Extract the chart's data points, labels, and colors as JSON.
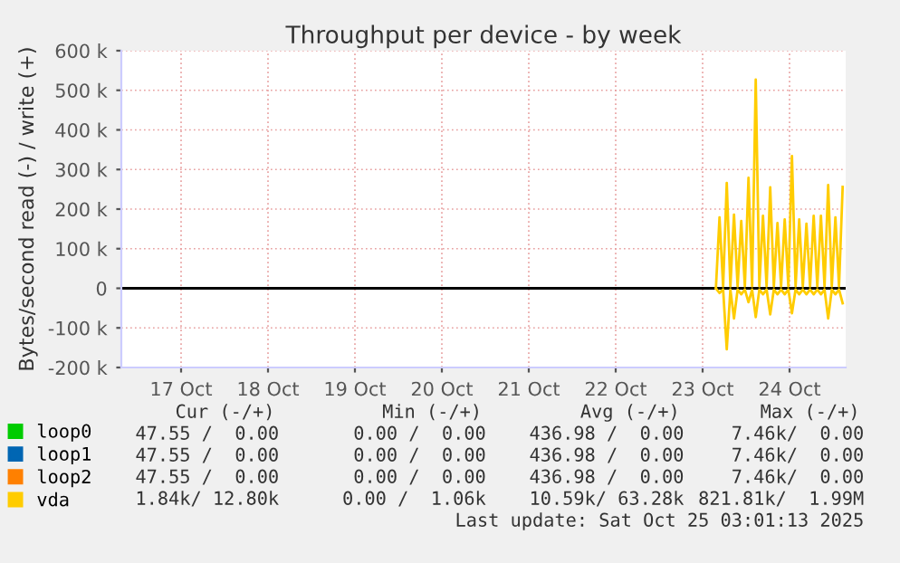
{
  "chart_data": {
    "type": "line",
    "title": "Throughput per device - by week",
    "ylabel": "Bytes/second read (-) / write (+)",
    "series": [
      {
        "name": "loop0",
        "color": "#00cc00"
      },
      {
        "name": "loop1",
        "color": "#0066b3"
      },
      {
        "name": "loop2",
        "color": "#ff8000"
      },
      {
        "name": "vda",
        "color": "#ffcc00",
        "x": [
          "2025-10-23T15:40",
          "2025-10-23T16:40",
          "2025-10-23T17:40",
          "2025-10-23T18:40",
          "2025-10-23T19:40",
          "2025-10-23T20:40",
          "2025-10-23T21:40",
          "2025-10-23T22:40",
          "2025-10-23T23:40",
          "2025-10-24T00:40",
          "2025-10-24T01:40",
          "2025-10-24T02:40",
          "2025-10-24T03:40",
          "2025-10-24T04:40",
          "2025-10-24T05:40",
          "2025-10-24T06:40",
          "2025-10-24T07:40",
          "2025-10-24T08:40",
          "2025-10-24T09:40",
          "2025-10-24T10:40",
          "2025-10-24T11:40",
          "2025-10-24T12:40",
          "2025-10-24T13:40",
          "2025-10-24T14:40",
          "2025-10-24T15:40",
          "2025-10-24T16:40",
          "2025-10-24T17:40",
          "2025-10-24T18:40",
          "2025-10-24T19:40",
          "2025-10-24T20:40",
          "2025-10-24T21:40",
          "2025-10-24T22:40",
          "2025-10-24T23:40",
          "2025-10-25T00:40",
          "2025-10-25T01:40",
          "2025-10-25T02:40"
        ],
        "values": [
          0,
          179000,
          5000,
          266000,
          5000,
          186000,
          5000,
          170000,
          5000,
          279000,
          5000,
          527000,
          5000,
          183000,
          5000,
          255000,
          5000,
          165000,
          5000,
          174000,
          5000,
          334000,
          5000,
          174000,
          5000,
          163000,
          5000,
          183000,
          5000,
          183000,
          5000,
          261000,
          5000,
          179000,
          5000,
          256000
        ]
      },
      {
        "color": "#ffcc00",
        "x": [
          "2025-10-23T15:40",
          "2025-10-23T16:40",
          "2025-10-23T17:40",
          "2025-10-23T18:40",
          "2025-10-23T19:40",
          "2025-10-23T20:40",
          "2025-10-23T21:40",
          "2025-10-23T22:40",
          "2025-10-23T23:40",
          "2025-10-24T00:40",
          "2025-10-24T01:40",
          "2025-10-24T02:40",
          "2025-10-24T03:40",
          "2025-10-24T04:40",
          "2025-10-24T05:40",
          "2025-10-24T06:40",
          "2025-10-24T07:40",
          "2025-10-24T08:40",
          "2025-10-24T09:40",
          "2025-10-24T10:40",
          "2025-10-24T11:40",
          "2025-10-24T12:40",
          "2025-10-24T13:40",
          "2025-10-24T14:40",
          "2025-10-24T15:40",
          "2025-10-24T16:40",
          "2025-10-24T17:40",
          "2025-10-24T18:40",
          "2025-10-24T19:40",
          "2025-10-24T20:40",
          "2025-10-24T21:40",
          "2025-10-24T22:40",
          "2025-10-24T23:40",
          "2025-10-25T00:40",
          "2025-10-25T01:40",
          "2025-10-25T02:40"
        ],
        "values": [
          0,
          -12000,
          -3000,
          -154000,
          -3000,
          -76000,
          -3000,
          -15000,
          -3000,
          -35000,
          -3000,
          -73000,
          -3000,
          -15000,
          -3000,
          -66000,
          -3000,
          -15000,
          -3000,
          -15000,
          -3000,
          -63000,
          -3000,
          -15000,
          -3000,
          -15000,
          -3000,
          -15000,
          -3000,
          -15000,
          -3000,
          -76000,
          -3000,
          -15000,
          -3000,
          -38000
        ]
      }
    ],
    "xlim": [
      "2025-10-16T19:30",
      "2025-10-25T03:30"
    ],
    "xticks": [
      {
        "value": "2025-10-17T12:00",
        "label": "17 Oct"
      },
      {
        "value": "2025-10-18T12:00",
        "label": "18 Oct"
      },
      {
        "value": "2025-10-19T12:00",
        "label": "19 Oct"
      },
      {
        "value": "2025-10-20T12:00",
        "label": "20 Oct"
      },
      {
        "value": "2025-10-21T12:00",
        "label": "21 Oct"
      },
      {
        "value": "2025-10-22T12:00",
        "label": "22 Oct"
      },
      {
        "value": "2025-10-23T12:00",
        "label": "23 Oct"
      },
      {
        "value": "2025-10-24T12:00",
        "label": "24 Oct"
      }
    ],
    "ylim": [
      -200000,
      600000
    ],
    "yticks": [
      {
        "value": -200000,
        "label": "-200 k"
      },
      {
        "value": -100000,
        "label": "-100 k"
      },
      {
        "value": 0,
        "label": "0"
      },
      {
        "value": 100000,
        "label": "100 k"
      },
      {
        "value": 200000,
        "label": "200 k"
      },
      {
        "value": 300000,
        "label": "300 k"
      },
      {
        "value": 400000,
        "label": "400 k"
      },
      {
        "value": 500000,
        "label": "500 k"
      },
      {
        "value": 600000,
        "label": "600 k"
      }
    ],
    "ref_lines": [
      {
        "axis": "y",
        "value": 0,
        "color": "#000000"
      }
    ],
    "grid": true,
    "legend": "bottom left",
    "annotations": [
      "Cur (-/+)",
      "Min (-/+)",
      "Avg (-/+)",
      "Max (-/+)",
      "47.55 /  0.00",
      "0.00 /  0.00",
      "436.98 /  0.00",
      "7.46k/  0.00",
      "47.55 /  0.00",
      "0.00 /  0.00",
      "436.98 /  0.00",
      "7.46k/  0.00",
      "47.55 /  0.00",
      "0.00 /  0.00",
      "436.98 /  0.00",
      "7.46k/  0.00",
      "1.84k/ 12.80k",
      "0.00 /  1.06k",
      "10.59k/ 63.28k",
      "821.81k/  1.99M",
      "Last update: Sat Oct 25 03:01:13 2025"
    ]
  }
}
